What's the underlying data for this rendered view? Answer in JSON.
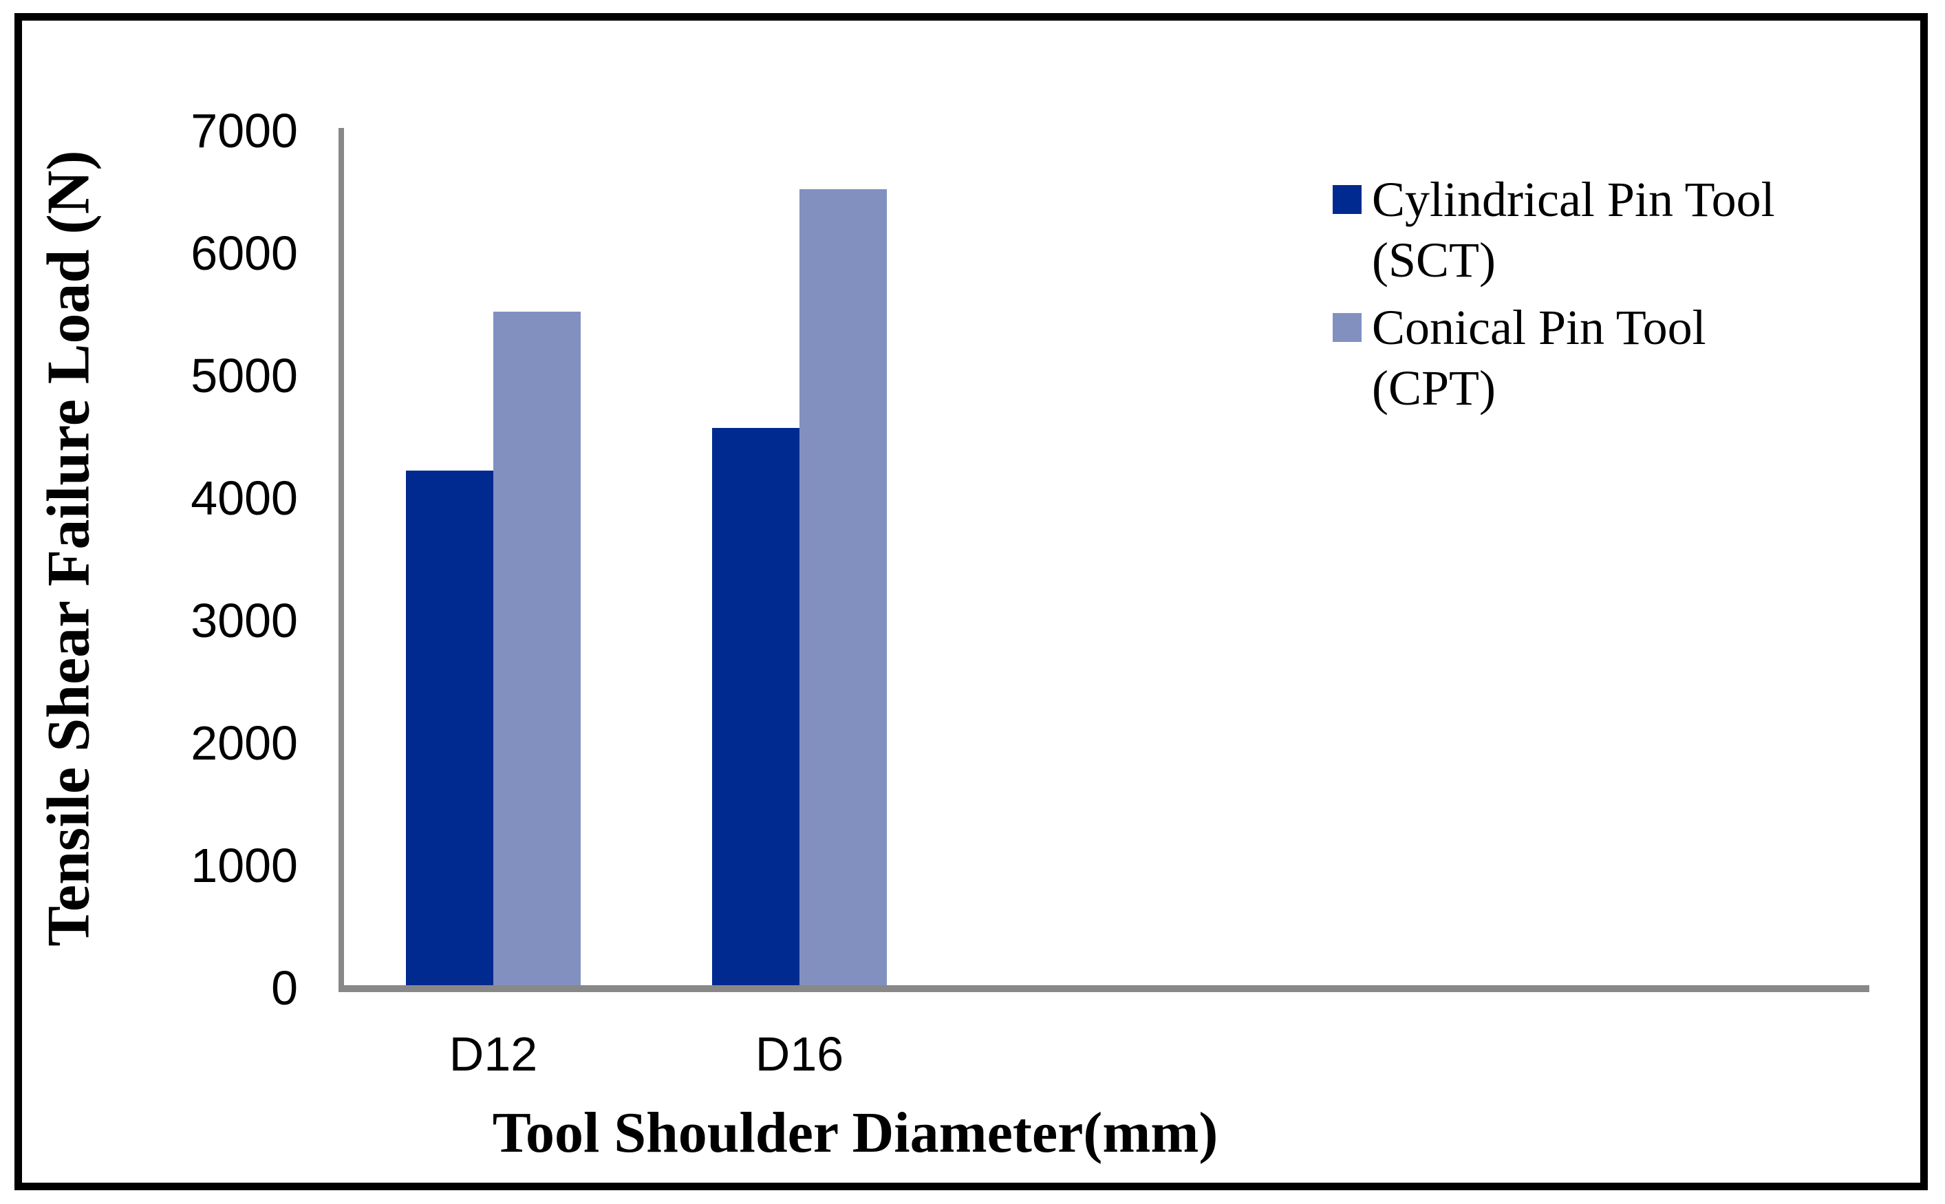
{
  "chart_data": {
    "type": "bar",
    "title": "",
    "categories": [
      "D12",
      "D16"
    ],
    "series": [
      {
        "name": "Cylindrical Pin Tool (SCT)",
        "legend_lines": [
          "Cylindrical Pin Tool",
          "(SCT)"
        ],
        "color": "#002a90",
        "values": [
          4200,
          4550
        ]
      },
      {
        "name": "Conical Pin Tool (CPT)",
        "legend_lines": [
          "Conical Pin Tool",
          "(CPT)"
        ],
        "color": "#8290c0",
        "values": [
          5500,
          6500
        ]
      }
    ],
    "xlabel": "Tool Shoulder Diameter(mm)",
    "ylabel": "Tensile Shear Failure Load (N)",
    "ylim": [
      0,
      7000
    ],
    "yticks": [
      0,
      1000,
      2000,
      3000,
      4000,
      5000,
      6000,
      7000
    ],
    "grid": false,
    "legend_position": "upper-right",
    "colors": {
      "axis_line": "#888888",
      "text": "#000000",
      "frame": "#000000",
      "background": "#ffffff"
    }
  }
}
